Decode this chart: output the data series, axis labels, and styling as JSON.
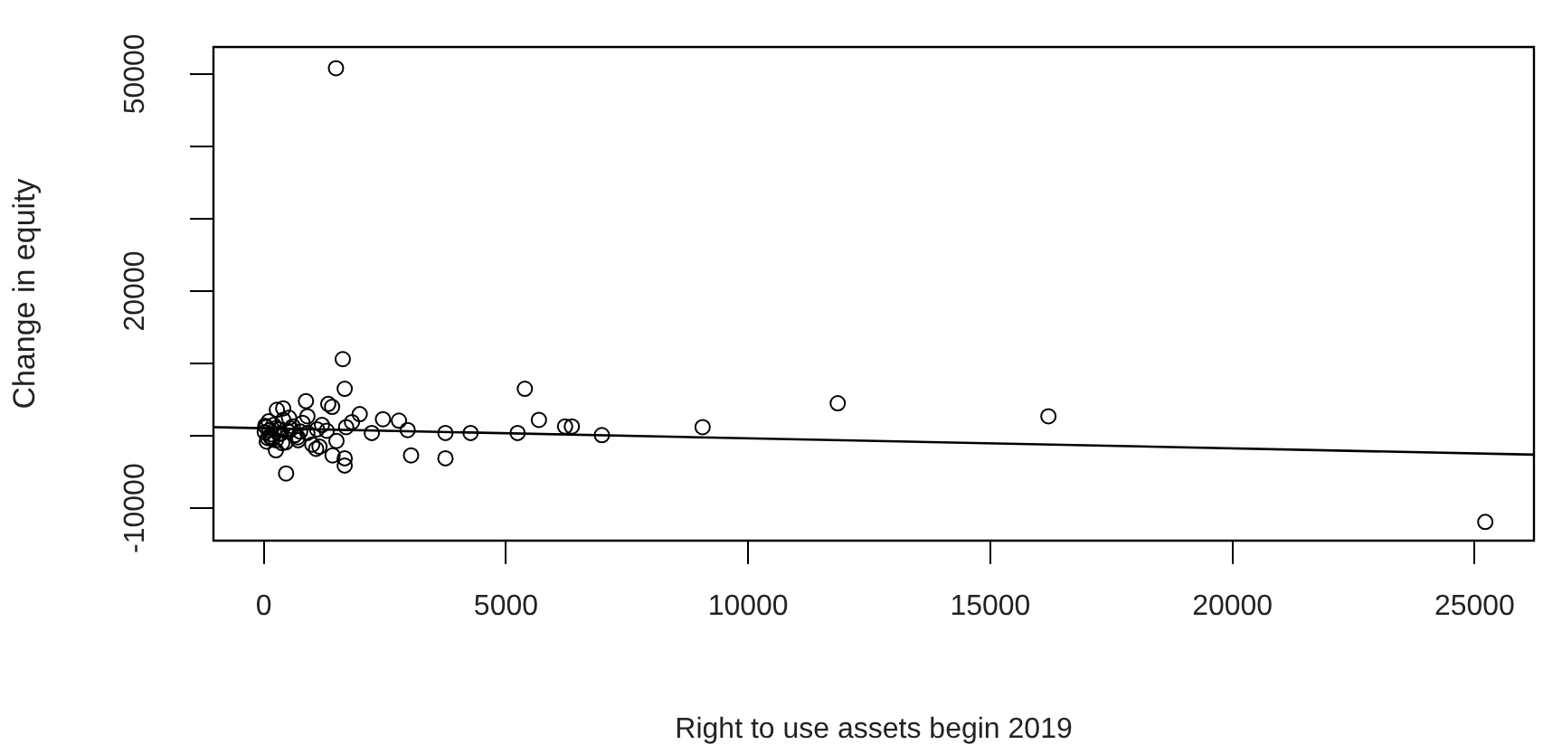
{
  "chart_data": {
    "type": "scatter",
    "xlabel": "Right to use assets begin 2019",
    "ylabel": "Change in equity",
    "xlim": [
      -1040,
      26225
    ],
    "ylim": [
      -14480,
      53730
    ],
    "xticks": [
      0,
      5000,
      10000,
      15000,
      20000,
      25000
    ],
    "yticks": [
      -10000,
      {
        "value": 0,
        "label": null
      },
      {
        "value": 10000,
        "label": null
      },
      20000,
      {
        "value": 30000,
        "label": null
      },
      {
        "value": 40000,
        "label": null
      },
      50000
    ],
    "grid": false,
    "legend": false,
    "series": [
      {
        "color": "#000000",
        "marker": "circle",
        "x": [
          1490,
          25220,
          9060,
          11850,
          16200,
          1630,
          1670,
          870,
          400,
          1410,
          1980,
          2460,
          2790,
          2970,
          2230,
          3750,
          4270,
          5240,
          5390,
          5680,
          6220,
          6360,
          6980,
          3040,
          3750,
          460,
          1670,
          1670,
          1420,
          1080,
          250,
          710,
          270,
          1330,
          1820,
          20,
          50,
          80,
          120,
          150,
          200,
          250,
          300,
          350,
          400,
          450,
          500,
          600,
          700,
          800,
          900,
          1000,
          1100,
          1200,
          60,
          100,
          180,
          260,
          380,
          520,
          640,
          900,
          1150,
          1300,
          1500,
          1700,
          30,
          140,
          330,
          560,
          750
        ],
        "values": [
          50800,
          -11900,
          1200,
          4500,
          2700,
          10600,
          6500,
          4800,
          3800,
          4000,
          3000,
          2300,
          2100,
          800,
          400,
          400,
          400,
          400,
          6500,
          2200,
          1300,
          1300,
          100,
          -2700,
          -3100,
          -5200,
          -3100,
          -4100,
          -2700,
          -1800,
          -2000,
          -600,
          3600,
          4400,
          1900,
          500,
          1200,
          -300,
          800,
          200,
          1500,
          -600,
          900,
          300,
          2200,
          -900,
          600,
          1300,
          -200,
          1800,
          400,
          -1200,
          900,
          1500,
          -800,
          2000,
          -400,
          1100,
          -1000,
          2500,
          100,
          2700,
          -1500,
          700,
          -700,
          1200,
          1400,
          -200,
          300,
          1000,
          600
        ]
      },
      {
        "type": "line",
        "color": "#000000",
        "marker": "none",
        "x": [
          -1040,
          26225
        ],
        "values": [
          1200,
          -2600
        ]
      }
    ]
  }
}
